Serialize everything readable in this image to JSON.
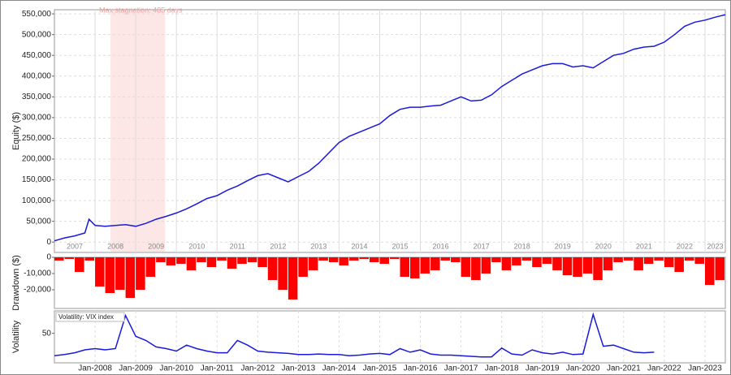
{
  "chart_data": [
    {
      "type": "line",
      "y_label": "Equity ($)",
      "color": "#1a1adc",
      "annotation": {
        "label": "Max stagnation: 485 days",
        "start": 2008.38,
        "end": 2009.72,
        "color": "#fde6e6"
      },
      "xlim": [
        2007,
        2023.5
      ],
      "xticks": [
        2007,
        2008,
        2009,
        2010,
        2011,
        2012,
        2013,
        2014,
        2015,
        2016,
        2017,
        2018,
        2019,
        2020,
        2021,
        2022,
        2023
      ],
      "ylim": [
        -25000,
        560000
      ],
      "yticks": [
        0,
        {
          "value": 50000,
          "label": "50,000"
        },
        {
          "value": 100000,
          "label": "100,000"
        },
        {
          "value": 150000,
          "label": "150,000"
        },
        {
          "value": 200000,
          "label": "200,000"
        },
        {
          "value": 250000,
          "label": "250,000"
        },
        {
          "value": 300000,
          "label": "300,000"
        },
        {
          "value": 350000,
          "label": "350,000"
        },
        {
          "value": 400000,
          "label": "400,000"
        },
        {
          "value": 450000,
          "label": "450,000"
        },
        {
          "value": 500000,
          "label": "500,000"
        },
        {
          "value": 550000,
          "label": "550,000"
        }
      ],
      "grid": true,
      "x": [
        2007,
        2007.25,
        2007.5,
        2007.75,
        2007.85,
        2008,
        2008.25,
        2008.5,
        2008.75,
        2009,
        2009.25,
        2009.5,
        2009.75,
        2010,
        2010.25,
        2010.5,
        2010.75,
        2011,
        2011.25,
        2011.5,
        2011.75,
        2012,
        2012.25,
        2012.5,
        2012.75,
        2013,
        2013.25,
        2013.5,
        2013.75,
        2014,
        2014.25,
        2014.5,
        2014.75,
        2015,
        2015.25,
        2015.5,
        2015.75,
        2016,
        2016.25,
        2016.5,
        2016.75,
        2017,
        2017.25,
        2017.5,
        2017.75,
        2018,
        2018.25,
        2018.5,
        2018.75,
        2019,
        2019.25,
        2019.5,
        2019.75,
        2020,
        2020.25,
        2020.5,
        2020.75,
        2021,
        2021.25,
        2021.5,
        2021.75,
        2022,
        2022.25,
        2022.5,
        2022.75,
        2023,
        2023.25,
        2023.5
      ],
      "values": [
        3000,
        10000,
        15000,
        22000,
        55000,
        40000,
        38000,
        40000,
        42000,
        38000,
        45000,
        55000,
        62000,
        70000,
        80000,
        92000,
        105000,
        112000,
        125000,
        135000,
        148000,
        160000,
        165000,
        155000,
        145000,
        158000,
        170000,
        190000,
        215000,
        240000,
        255000,
        265000,
        275000,
        285000,
        305000,
        320000,
        325000,
        325000,
        328000,
        330000,
        340000,
        350000,
        340000,
        342000,
        355000,
        375000,
        390000,
        405000,
        415000,
        425000,
        430000,
        430000,
        422000,
        425000,
        420000,
        435000,
        450000,
        455000,
        465000,
        470000,
        472000,
        482000,
        500000,
        520000,
        530000,
        535000,
        542000,
        548000
      ]
    },
    {
      "type": "bar",
      "y_label": "Drawdown ($)",
      "color": "#ff0000",
      "xlim": [
        2007,
        2023.5
      ],
      "bar_width": 0.25,
      "ylim": [
        -31500,
        0
      ],
      "yticks": [
        0,
        {
          "value": -10000,
          "label": "-10,000"
        },
        {
          "value": -20000,
          "label": "-20,000"
        }
      ],
      "x": [
        2007,
        2007.25,
        2007.5,
        2007.75,
        2008,
        2008.25,
        2008.5,
        2008.75,
        2009,
        2009.25,
        2009.5,
        2009.75,
        2010,
        2010.25,
        2010.5,
        2010.75,
        2011,
        2011.25,
        2011.5,
        2011.75,
        2012,
        2012.25,
        2012.5,
        2012.75,
        2013,
        2013.25,
        2013.5,
        2013.75,
        2014,
        2014.25,
        2014.5,
        2014.75,
        2015,
        2015.25,
        2015.5,
        2015.75,
        2016,
        2016.25,
        2016.5,
        2016.75,
        2017,
        2017.25,
        2017.5,
        2017.75,
        2018,
        2018.25,
        2018.5,
        2018.75,
        2019,
        2019.25,
        2019.5,
        2019.75,
        2020,
        2020.25,
        2020.5,
        2020.75,
        2021,
        2021.25,
        2021.5,
        2021.75,
        2022,
        2022.25,
        2022.5,
        2022.75,
        2023,
        2023.25
      ],
      "values": [
        -2000,
        -1000,
        -9000,
        -2000,
        -18000,
        -22000,
        -20000,
        -25000,
        -20000,
        -12000,
        -3000,
        -5000,
        -4000,
        -8000,
        -3000,
        -6000,
        -2000,
        -7000,
        -4000,
        -3000,
        -6000,
        -14000,
        -20000,
        -26000,
        -12000,
        -8000,
        -2000,
        -3000,
        -5000,
        -2000,
        -1000,
        -3000,
        -4000,
        -1000,
        -12000,
        -13000,
        -10000,
        -8000,
        -2000,
        -3000,
        -12000,
        -14000,
        -10000,
        -3000,
        -8000,
        -5000,
        -2000,
        -6000,
        -4000,
        -8000,
        -11000,
        -12000,
        -10000,
        -14000,
        -8000,
        -3000,
        -2000,
        -8000,
        -4000,
        -2000,
        -6000,
        -9000,
        -2000,
        -4000,
        -17000,
        -14000
      ]
    },
    {
      "type": "line",
      "y_label": "Volatility",
      "xlim": [
        2007,
        2023.5
      ],
      "xticks": [
        {
          "value": 2008,
          "label": "Jan-2008"
        },
        {
          "value": 2009,
          "label": "Jan-2009"
        },
        {
          "value": 2010,
          "label": "Jan-2010"
        },
        {
          "value": 2011,
          "label": "Jan-2011"
        },
        {
          "value": 2012,
          "label": "Jan-2012"
        },
        {
          "value": 2013,
          "label": "Jan-2013"
        },
        {
          "value": 2014,
          "label": "Jan-2014"
        },
        {
          "value": 2015,
          "label": "Jan-2015"
        },
        {
          "value": 2016,
          "label": "Jan-2016"
        },
        {
          "value": 2017,
          "label": "Jan-2017"
        },
        {
          "value": 2018,
          "label": "Jan-2018"
        },
        {
          "value": 2019,
          "label": "Jan-2019"
        },
        {
          "value": 2020,
          "label": "Jan-2020"
        },
        {
          "value": 2021,
          "label": "Jan-2021"
        },
        {
          "value": 2022,
          "label": "Jan-2022"
        },
        {
          "value": 2023,
          "label": "Jan-2023"
        }
      ],
      "ylim": [
        0,
        88
      ],
      "yticks": [
        50
      ],
      "x": [
        2007,
        2007.25,
        2007.5,
        2007.75,
        2008,
        2008.25,
        2008.5,
        2008.75,
        2009,
        2009.25,
        2009.5,
        2009.75,
        2010,
        2010.25,
        2010.5,
        2010.75,
        2011,
        2011.25,
        2011.5,
        2011.75,
        2012,
        2012.25,
        2012.5,
        2012.75,
        2013,
        2013.25,
        2013.5,
        2013.75,
        2014,
        2014.25,
        2014.5,
        2014.75,
        2015,
        2015.25,
        2015.5,
        2015.75,
        2016,
        2016.25,
        2016.5,
        2016.75,
        2017,
        2017.25,
        2017.5,
        2017.75,
        2018,
        2018.25,
        2018.5,
        2018.75,
        2019,
        2019.25,
        2019.5,
        2019.75,
        2020,
        2020.25,
        2020.5,
        2020.75,
        2021,
        2021.25,
        2021.5,
        2021.75
      ],
      "series": [
        {
          "name": "Volatility: VIX index",
          "color": "#1a1adc",
          "values": [
            12,
            14,
            17,
            22,
            24,
            22,
            24,
            80,
            45,
            38,
            27,
            24,
            20,
            30,
            24,
            20,
            17,
            17,
            38,
            30,
            20,
            18,
            17,
            16,
            14,
            14,
            15,
            14,
            14,
            12,
            13,
            15,
            16,
            14,
            24,
            18,
            22,
            15,
            13,
            13,
            12,
            11,
            10,
            10,
            25,
            15,
            13,
            22,
            17,
            15,
            18,
            14,
            15,
            82,
            28,
            30,
            24,
            18,
            17,
            18
          ]
        }
      ]
    }
  ]
}
